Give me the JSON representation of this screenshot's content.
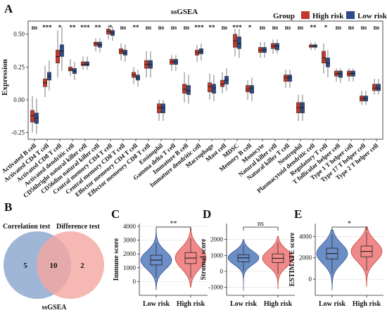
{
  "colors": {
    "high": "#C0392B",
    "low": "#2E4A87",
    "high_violin": "#F08A8A",
    "low_violin": "#6C8EC7",
    "venn_left": "#8FA9CF",
    "venn_right": "#F4A6A0"
  },
  "panels": {
    "A": "A",
    "B": "B",
    "C": "C",
    "D": "D",
    "E": "E"
  },
  "chart_data": [
    {
      "type": "box",
      "panel": "A",
      "title": "ssGSEA",
      "ylabel": "Expression",
      "ylim": [
        -0.3,
        0.6
      ],
      "yticks": [
        "-0.25",
        "0.00",
        "0.25",
        "0.50"
      ],
      "legend": {
        "title": "Group",
        "placement": "top-right",
        "entries": [
          "High risk",
          "Low risk"
        ]
      },
      "categories": [
        "Activated B cell",
        "Activated CD4 T cell",
        "Activated CD8 T cell",
        "Activated dendritic cell",
        "CD56bright natural killer cell",
        "CD56dim natural killer cell",
        "Central memory CD4 T cell",
        "Central memory CD8 T cell",
        "Effector memeory CD4 T cell",
        "Effector memeory CD8 T cell",
        "Eosinophil",
        "Gamma delta T cell",
        "Immature B cell",
        "Immature dendritic cell",
        "Macrophage",
        "Mast cell",
        "MDSC",
        "Memory B cell",
        "Monocyte",
        "Natural killer cell",
        "Natural killer T cell",
        "Neutrophil",
        "Plasmacytoid dendritic cell",
        "Regulatory T cell",
        "T follicular helper cell",
        "Type 1 T helper cell",
        "Type 17 T helper cell",
        "Type 2 T helper cell"
      ],
      "significance": [
        "ns",
        "***",
        "*",
        "**",
        "***",
        "**",
        "*",
        "ns",
        "**",
        "ns",
        "ns",
        "ns",
        "ns",
        "***",
        "**",
        "ns",
        "***",
        "*",
        "ns",
        "ns",
        "ns",
        "ns",
        "**",
        "*",
        "ns",
        "ns",
        "ns",
        "ns"
      ],
      "series": [
        {
          "name": "High risk",
          "q1": [
            -0.17,
            0.1,
            0.28,
            0.22,
            0.26,
            0.41,
            0.5,
            0.35,
            0.17,
            0.24,
            -0.1,
            0.27,
            0.05,
            0.34,
            0.06,
            0.1,
            0.4,
            0.06,
            0.36,
            0.39,
            0.14,
            -0.1,
            0.4,
            0.28,
            0.18,
            0.18,
            -0.01,
            0.07
          ],
          "median": [
            -0.12,
            0.13,
            0.33,
            0.23,
            0.27,
            0.43,
            0.52,
            0.37,
            0.19,
            0.27,
            -0.06,
            0.29,
            0.08,
            0.36,
            0.1,
            0.12,
            0.45,
            0.08,
            0.38,
            0.41,
            0.17,
            -0.06,
            0.41,
            0.32,
            0.2,
            0.2,
            0.01,
            0.09
          ],
          "q3": [
            -0.08,
            0.16,
            0.38,
            0.25,
            0.29,
            0.44,
            0.54,
            0.39,
            0.21,
            0.3,
            -0.03,
            0.31,
            0.12,
            0.38,
            0.13,
            0.15,
            0.5,
            0.11,
            0.4,
            0.43,
            0.19,
            -0.02,
            0.42,
            0.37,
            0.22,
            0.22,
            0.03,
            0.12
          ],
          "whisker_low": [
            -0.25,
            0.02,
            0.17,
            0.18,
            0.23,
            0.37,
            0.46,
            0.3,
            0.12,
            0.17,
            -0.16,
            0.22,
            -0.02,
            0.29,
            0.0,
            0.05,
            0.33,
            0.0,
            0.32,
            0.35,
            0.09,
            -0.16,
            0.38,
            0.2,
            0.14,
            0.14,
            -0.04,
            0.04
          ],
          "whisker_high": [
            0.03,
            0.26,
            0.53,
            0.31,
            0.33,
            0.47,
            0.57,
            0.43,
            0.25,
            0.37,
            0.0,
            0.34,
            0.21,
            0.42,
            0.2,
            0.21,
            0.54,
            0.15,
            0.44,
            0.46,
            0.23,
            0.04,
            0.44,
            0.43,
            0.24,
            0.24,
            0.07,
            0.16
          ]
        },
        {
          "name": "Low risk",
          "q1": [
            -0.18,
            0.15,
            0.33,
            0.2,
            0.26,
            0.4,
            0.49,
            0.34,
            0.15,
            0.24,
            -0.1,
            0.27,
            0.04,
            0.35,
            0.05,
            0.12,
            0.39,
            0.05,
            0.36,
            0.38,
            0.14,
            -0.1,
            0.4,
            0.25,
            0.17,
            0.18,
            -0.01,
            0.07
          ],
          "median": [
            -0.14,
            0.18,
            0.37,
            0.22,
            0.27,
            0.42,
            0.51,
            0.36,
            0.17,
            0.27,
            -0.06,
            0.29,
            0.07,
            0.37,
            0.09,
            0.15,
            0.43,
            0.09,
            0.38,
            0.41,
            0.17,
            -0.06,
            0.41,
            0.28,
            0.2,
            0.2,
            0.01,
            0.09
          ],
          "q3": [
            -0.1,
            0.21,
            0.42,
            0.24,
            0.29,
            0.44,
            0.53,
            0.38,
            0.19,
            0.3,
            -0.03,
            0.31,
            0.11,
            0.39,
            0.12,
            0.18,
            0.48,
            0.11,
            0.4,
            0.43,
            0.19,
            -0.02,
            0.42,
            0.32,
            0.22,
            0.22,
            0.03,
            0.12
          ],
          "whisker_low": [
            -0.26,
            0.07,
            0.22,
            0.15,
            0.23,
            0.36,
            0.45,
            0.29,
            0.1,
            0.17,
            -0.16,
            0.22,
            -0.03,
            0.3,
            -0.01,
            0.07,
            0.32,
            -0.01,
            0.32,
            0.35,
            0.09,
            -0.16,
            0.38,
            0.17,
            0.13,
            0.14,
            -0.04,
            0.04
          ],
          "whisker_high": [
            0.01,
            0.3,
            0.56,
            0.29,
            0.33,
            0.47,
            0.56,
            0.42,
            0.23,
            0.37,
            0.0,
            0.34,
            0.19,
            0.43,
            0.19,
            0.24,
            0.54,
            0.17,
            0.44,
            0.46,
            0.23,
            0.04,
            0.44,
            0.38,
            0.24,
            0.24,
            0.07,
            0.16
          ]
        }
      ]
    },
    {
      "type": "venn",
      "panel": "B",
      "sets": [
        {
          "name": "Correlation test",
          "only": 5
        },
        {
          "name": "Difference test",
          "only": 2
        }
      ],
      "intersection": 10,
      "caption": "ssGSEA"
    },
    {
      "type": "violin",
      "panel": "C",
      "ylabel": "Immune score",
      "categories": [
        "Low risk",
        "High risk"
      ],
      "ylim": [
        -1000,
        4200
      ],
      "yticks": [
        0,
        1000,
        2000,
        3000,
        4000
      ],
      "significance": "**",
      "median": [
        1550,
        1700
      ],
      "q1": [
        1200,
        1300
      ],
      "q3": [
        1900,
        2100
      ],
      "min": [
        -600,
        -400
      ],
      "max": [
        3700,
        3900
      ]
    },
    {
      "type": "violin",
      "panel": "D",
      "ylabel": "Stromal score",
      "categories": [
        "Low risk",
        "High risk"
      ],
      "ylim": [
        -1500,
        3000
      ],
      "yticks": [
        -1000,
        0,
        1000,
        2000
      ],
      "significance": "ns",
      "median": [
        850,
        820
      ],
      "q1": [
        600,
        550
      ],
      "q3": [
        1050,
        1100
      ],
      "min": [
        -1200,
        -1100
      ],
      "max": [
        2000,
        2200
      ]
    },
    {
      "type": "violin",
      "panel": "E",
      "ylabel": "ESTIMATE score",
      "categories": [
        "Low risk",
        "High risk"
      ],
      "ylim": [
        -1500,
        5200
      ],
      "yticks": [
        0,
        2000,
        4000
      ],
      "significance": "*",
      "median": [
        2400,
        2600
      ],
      "q1": [
        1900,
        2100
      ],
      "q3": [
        2900,
        3100
      ],
      "min": [
        -1000,
        -700
      ],
      "max": [
        4600,
        4900
      ]
    }
  ]
}
